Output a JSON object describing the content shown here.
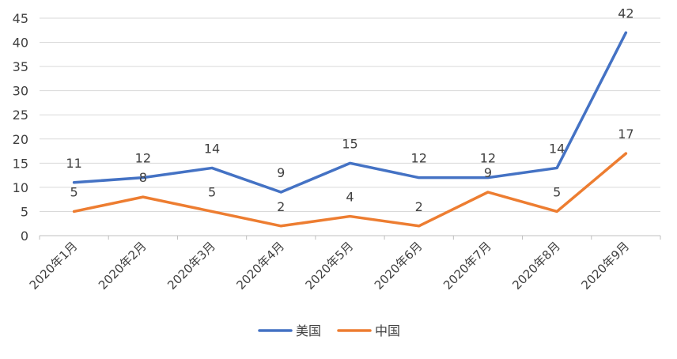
{
  "chart_data": {
    "type": "line",
    "categories": [
      "2020年1月",
      "2020年2月",
      "2020年3月",
      "2020年4月",
      "2020年5月",
      "2020年6月",
      "2020年7月",
      "2020年8月",
      "2020年9月"
    ],
    "series": [
      {
        "name": "美国",
        "color": "#4472C4",
        "values": [
          11,
          12,
          14,
          9,
          15,
          12,
          12,
          14,
          42
        ]
      },
      {
        "name": "中国",
        "color": "#ED7D31",
        "values": [
          5,
          8,
          5,
          2,
          4,
          2,
          9,
          5,
          17
        ]
      }
    ],
    "ylim": [
      0,
      45
    ],
    "ytick_step": 5,
    "yticks": [
      "0",
      "5",
      "10",
      "15",
      "20",
      "25",
      "30",
      "35",
      "40",
      "45"
    ],
    "grid": true,
    "legend": "bottom",
    "data_labels": true,
    "x_tick_rotation": -45
  }
}
